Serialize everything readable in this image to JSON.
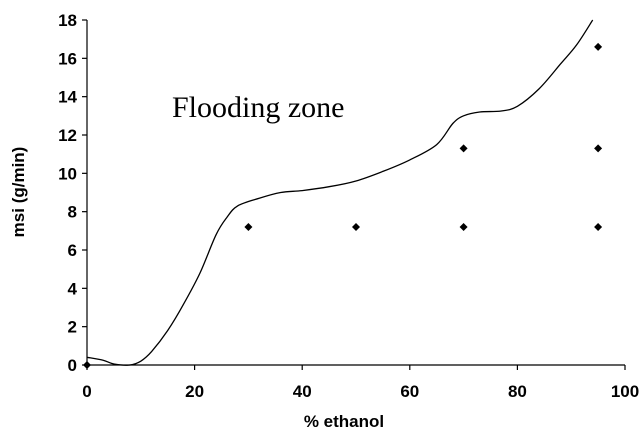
{
  "chart_data": {
    "type": "scatter",
    "xlabel": "% ethanol",
    "ylabel": "msi (g/min)",
    "xlim": [
      0,
      100
    ],
    "ylim": [
      0,
      18
    ],
    "x_ticks": [
      0,
      20,
      40,
      60,
      80,
      100
    ],
    "y_ticks": [
      0,
      2,
      4,
      6,
      8,
      10,
      12,
      14,
      16,
      18
    ],
    "grid": false,
    "annotation": "Flooding  zone",
    "series": [
      {
        "kind": "points",
        "marker": "diamond",
        "color": "#000000",
        "points": [
          {
            "x": 0,
            "y": 0.0
          },
          {
            "x": 30,
            "y": 7.2
          },
          {
            "x": 50,
            "y": 7.2
          },
          {
            "x": 70,
            "y": 7.2
          },
          {
            "x": 70,
            "y": 11.3
          },
          {
            "x": 95,
            "y": 7.2
          },
          {
            "x": 95,
            "y": 11.3
          },
          {
            "x": 95,
            "y": 16.6
          }
        ]
      },
      {
        "kind": "curve",
        "color": "#000000",
        "points": [
          {
            "x": 0,
            "y": 0.4
          },
          {
            "x": 3,
            "y": 0.25
          },
          {
            "x": 5,
            "y": 0.05
          },
          {
            "x": 8,
            "y": 0.0
          },
          {
            "x": 10,
            "y": 0.2
          },
          {
            "x": 12,
            "y": 0.7
          },
          {
            "x": 15,
            "y": 1.8
          },
          {
            "x": 18,
            "y": 3.2
          },
          {
            "x": 21,
            "y": 4.8
          },
          {
            "x": 24,
            "y": 6.8
          },
          {
            "x": 26,
            "y": 7.7
          },
          {
            "x": 28,
            "y": 8.3
          },
          {
            "x": 32,
            "y": 8.7
          },
          {
            "x": 36,
            "y": 9.0
          },
          {
            "x": 40,
            "y": 9.1
          },
          {
            "x": 45,
            "y": 9.3
          },
          {
            "x": 50,
            "y": 9.6
          },
          {
            "x": 55,
            "y": 10.1
          },
          {
            "x": 60,
            "y": 10.7
          },
          {
            "x": 65,
            "y": 11.5
          },
          {
            "x": 68,
            "y": 12.6
          },
          {
            "x": 70,
            "y": 13.0
          },
          {
            "x": 73,
            "y": 13.2
          },
          {
            "x": 77,
            "y": 13.25
          },
          {
            "x": 80,
            "y": 13.5
          },
          {
            "x": 84,
            "y": 14.4
          },
          {
            "x": 88,
            "y": 15.7
          },
          {
            "x": 91,
            "y": 16.7
          },
          {
            "x": 94,
            "y": 18.0
          }
        ]
      }
    ]
  }
}
